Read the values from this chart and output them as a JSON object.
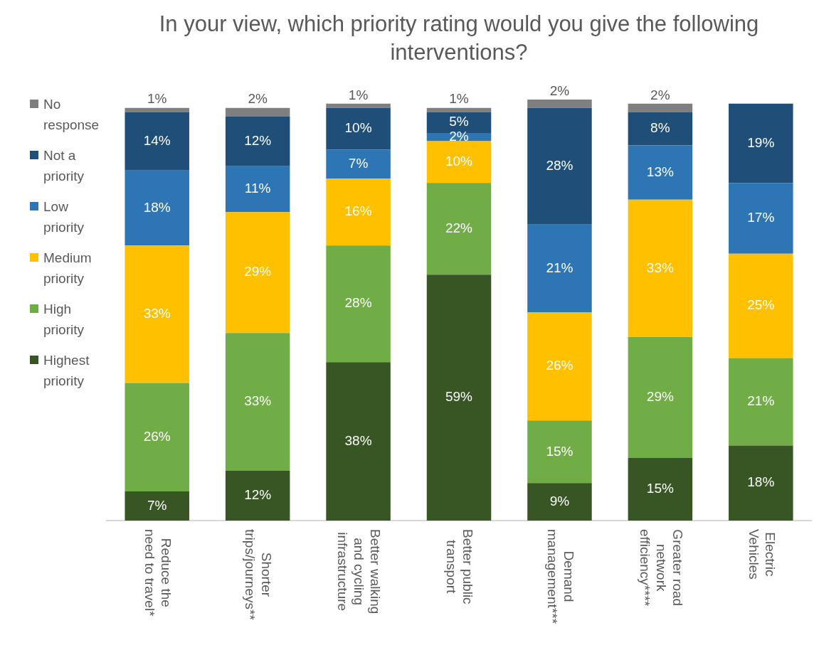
{
  "chart_data": {
    "type": "bar",
    "stacked": true,
    "title": "In your view, which priority rating would you give the following interventions?",
    "legend": "left",
    "categories": [
      "Reduce the need to travel*",
      "Shorter trips/journeys**",
      "Better walking and cycling infrastructure",
      "Better public transport",
      "Demand management***",
      "Greater road network efficiency****",
      "Electric Vehicles"
    ],
    "series": [
      {
        "name": "Highest priority",
        "color": "#375623",
        "values": [
          7,
          12,
          38,
          59,
          9,
          15,
          18
        ],
        "value_labels": [
          "7%",
          "12%",
          "38%",
          "59%",
          "9%",
          "15%",
          "18%"
        ]
      },
      {
        "name": "High priority",
        "color": "#70ad47",
        "values": [
          26,
          33,
          28,
          22,
          15,
          29,
          21
        ],
        "value_labels": [
          "26%",
          "33%",
          "28%",
          "22%",
          "15%",
          "29%",
          "21%"
        ]
      },
      {
        "name": "Medium priority",
        "color": "#ffc000",
        "values": [
          33,
          29,
          16,
          10,
          26,
          33,
          25
        ],
        "value_labels": [
          "33%",
          "29%",
          "16%",
          "10%",
          "26%",
          "33%",
          "25%"
        ]
      },
      {
        "name": "Low priority",
        "color": "#2e75b6",
        "values": [
          18,
          11,
          7,
          2,
          21,
          13,
          17
        ],
        "value_labels": [
          "18%",
          "11%",
          "7%",
          "2%",
          "21%",
          "13%",
          "17%"
        ]
      },
      {
        "name": "Not a priority",
        "color": "#1f4e79",
        "values": [
          14,
          12,
          10,
          5,
          28,
          8,
          19
        ],
        "value_labels": [
          "14%",
          "12%",
          "10%",
          "5%",
          "28%",
          "8%",
          "19%"
        ]
      },
      {
        "name": "No response",
        "color": "#7f7f7f",
        "values": [
          1,
          2,
          1,
          1,
          2,
          2,
          null
        ],
        "value_labels": [
          "1%",
          "2%",
          "1%",
          "1%",
          "2%",
          "2%",
          null
        ]
      }
    ]
  }
}
